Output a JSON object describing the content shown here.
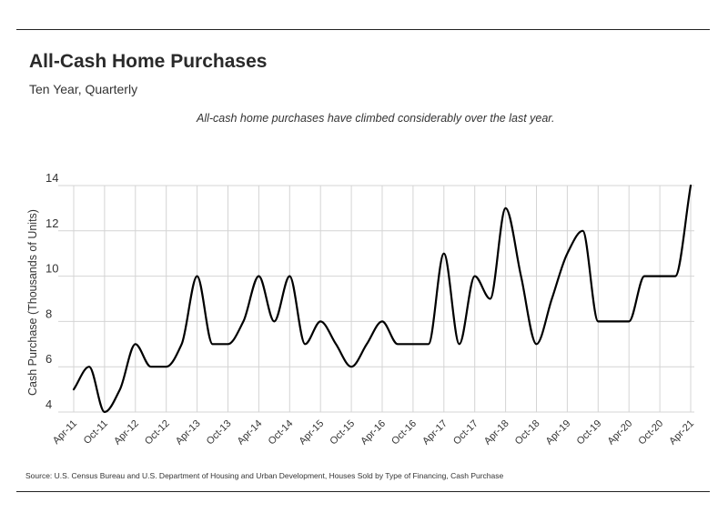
{
  "header": {
    "title": "All-Cash Home Purchases",
    "subtitle": "Ten Year, Quarterly"
  },
  "annotation": "All-cash home purchases have climbed considerably over the last year.",
  "source": "Source:  U.S. Census Bureau and U.S. Department of Housing and Urban Development, Houses Sold by Type of Financing, Cash Purchase",
  "colors": {
    "line": "#000000",
    "grid": "#d4d4d4",
    "rule": "#222222"
  },
  "chart_data": {
    "type": "line",
    "title": "All-Cash Home Purchases",
    "subtitle": "Ten Year, Quarterly",
    "xlabel": "",
    "ylabel": "Cash Purchase (Thousands of Units)",
    "ylim": [
      4,
      14
    ],
    "yticks": [
      4,
      6,
      8,
      10,
      12,
      14
    ],
    "grid": true,
    "legend": "none",
    "x": [
      "Apr-11",
      "Jul-11",
      "Oct-11",
      "Jan-12",
      "Apr-12",
      "Jul-12",
      "Oct-12",
      "Jan-13",
      "Apr-13",
      "Jul-13",
      "Oct-13",
      "Jan-14",
      "Apr-14",
      "Jul-14",
      "Oct-14",
      "Jan-15",
      "Apr-15",
      "Jul-15",
      "Oct-15",
      "Jan-16",
      "Apr-16",
      "Jul-16",
      "Oct-16",
      "Jan-17",
      "Apr-17",
      "Jul-17",
      "Oct-17",
      "Jan-18",
      "Apr-18",
      "Jul-18",
      "Oct-18",
      "Jan-19",
      "Apr-19",
      "Jul-19",
      "Oct-19",
      "Jan-20",
      "Apr-20",
      "Jul-20",
      "Oct-20",
      "Jan-21",
      "Apr-21"
    ],
    "xtick_labels": [
      "Apr-11",
      "Oct-11",
      "Apr-12",
      "Oct-12",
      "Apr-13",
      "Oct-13",
      "Apr-14",
      "Oct-14",
      "Apr-15",
      "Oct-15",
      "Apr-16",
      "Oct-16",
      "Apr-17",
      "Oct-17",
      "Apr-18",
      "Oct-18",
      "Apr-19",
      "Oct-19",
      "Apr-20",
      "Oct-20",
      "Apr-21"
    ],
    "series": [
      {
        "values": [
          5,
          6,
          4,
          5,
          7,
          6,
          6,
          7,
          10,
          7,
          7,
          8,
          10,
          8,
          10,
          7,
          8,
          7,
          6,
          7,
          8,
          7,
          7,
          7,
          11,
          7,
          10,
          9,
          13,
          10,
          7,
          9,
          11,
          12,
          8,
          8,
          8,
          10,
          10,
          10,
          14
        ]
      }
    ]
  }
}
